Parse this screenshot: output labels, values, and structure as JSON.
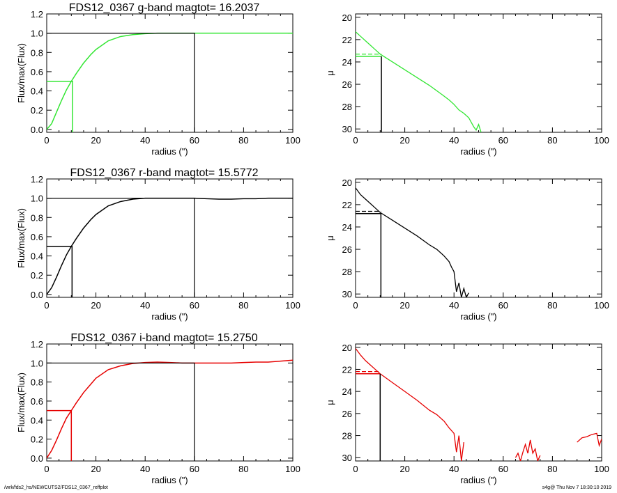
{
  "footer": {
    "path": "/wrk/fds2_hs/NEWCUTS2/FDS12_0367_reffplot",
    "stamp": "s4g@  Thu Nov  7 18:30:10 2019"
  },
  "chart_data": [
    {
      "type": "line",
      "panel": "g-band growth curve",
      "title": "FDS12_0367 g-band  magtot=      16.2037",
      "xlabel": "radius (\")",
      "ylabel": "Flux/max(Flux)",
      "xlim": [
        0,
        100
      ],
      "ylim": [
        -0.03,
        1.2
      ],
      "xticks": [
        "0",
        "20",
        "40",
        "60",
        "80",
        "100"
      ],
      "yticks": [
        "0.0",
        "0.2",
        "0.4",
        "0.6",
        "0.8",
        "1.0",
        "1.2"
      ],
      "color": "#33e633",
      "series": [
        {
          "x": [
            0,
            2,
            4,
            6,
            8,
            10,
            12,
            15,
            18,
            20,
            25,
            30,
            35,
            40,
            45,
            50,
            55,
            60,
            65,
            70,
            75,
            80,
            85,
            90,
            95,
            100
          ],
          "y": [
            0.0,
            0.06,
            0.18,
            0.3,
            0.41,
            0.5,
            0.58,
            0.69,
            0.78,
            0.83,
            0.92,
            0.965,
            0.985,
            0.995,
            1.0,
            1.0,
            1.0,
            1.0,
            1.0,
            1.0,
            1.0,
            1.0,
            1.0,
            1.0,
            1.0,
            1.0
          ]
        }
      ],
      "half_light": {
        "x": 10.5,
        "y": 0.5
      },
      "normalization": {
        "x": 60,
        "y": 1.0
      }
    },
    {
      "type": "line",
      "panel": "g-band surface brightness profile",
      "title": "",
      "xlabel": "radius (\")",
      "ylabel": "μ",
      "xlim": [
        0,
        100
      ],
      "ylim": [
        30.3,
        19.7
      ],
      "xticks": [
        "0",
        "20",
        "40",
        "60",
        "80",
        "100"
      ],
      "yticks": [
        "20",
        "22",
        "24",
        "26",
        "28",
        "30"
      ],
      "color": "#33e633",
      "series": [
        {
          "x": [
            0,
            2,
            4,
            6,
            8,
            10,
            15,
            20,
            25,
            30,
            35,
            38,
            40,
            42,
            44,
            46,
            47,
            48,
            49,
            50,
            51
          ],
          "y": [
            21.3,
            21.7,
            22.1,
            22.5,
            22.9,
            23.3,
            24.0,
            24.7,
            25.4,
            26.1,
            26.9,
            27.4,
            27.8,
            28.3,
            28.6,
            29.0,
            29.4,
            29.8,
            30.1,
            29.6,
            30.3
          ]
        }
      ],
      "reff": 10.5,
      "mu_e": 23.5,
      "mean_mu_e": 23.3
    },
    {
      "type": "line",
      "panel": "r-band growth curve",
      "title": "FDS12_0367 r-band  magtot=      15.5772",
      "xlabel": "radius (\")",
      "ylabel": "Flux/max(Flux)",
      "xlim": [
        0,
        100
      ],
      "ylim": [
        -0.03,
        1.2
      ],
      "xticks": [
        "0",
        "20",
        "40",
        "60",
        "80",
        "100"
      ],
      "yticks": [
        "0.0",
        "0.2",
        "0.4",
        "0.6",
        "0.8",
        "1.0",
        "1.2"
      ],
      "color": "#000000",
      "series": [
        {
          "x": [
            0,
            2,
            4,
            6,
            8,
            10,
            12,
            15,
            18,
            20,
            25,
            30,
            35,
            40,
            45,
            50,
            55,
            60,
            65,
            70,
            75,
            80,
            85,
            90,
            95,
            100
          ],
          "y": [
            0.0,
            0.07,
            0.18,
            0.3,
            0.41,
            0.5,
            0.58,
            0.69,
            0.78,
            0.83,
            0.92,
            0.965,
            0.99,
            1.0,
            1.0,
            1.0,
            1.0,
            1.0,
            0.995,
            0.99,
            0.99,
            0.995,
            0.995,
            1.0,
            1.0,
            1.0
          ]
        }
      ],
      "half_light": {
        "x": 10.3,
        "y": 0.5
      },
      "normalization": {
        "x": 60,
        "y": 1.0
      }
    },
    {
      "type": "line",
      "panel": "r-band surface brightness profile",
      "title": "",
      "xlabel": "radius (\")",
      "ylabel": "μ",
      "xlim": [
        0,
        100
      ],
      "ylim": [
        30.3,
        19.7
      ],
      "xticks": [
        "0",
        "20",
        "40",
        "60",
        "80",
        "100"
      ],
      "yticks": [
        "20",
        "22",
        "24",
        "26",
        "28",
        "30"
      ],
      "color": "#000000",
      "series": [
        {
          "x": [
            0,
            2,
            4,
            6,
            8,
            10,
            15,
            20,
            25,
            30,
            33,
            36,
            38,
            39,
            40,
            41,
            42,
            43,
            44,
            45,
            46
          ],
          "y": [
            20.5,
            21.1,
            21.5,
            21.9,
            22.3,
            22.7,
            23.4,
            24.1,
            24.8,
            25.6,
            26.0,
            26.6,
            27.1,
            27.6,
            28.0,
            29.8,
            29.0,
            30.3,
            29.5,
            30.3,
            29.9
          ]
        }
      ],
      "reff": 10.3,
      "mu_e": 22.8,
      "mean_mu_e": 22.6
    },
    {
      "type": "line",
      "panel": "i-band growth curve",
      "title": "FDS12_0367 i-band  magtot=      15.2750",
      "xlabel": "radius (\")",
      "ylabel": "Flux/max(Flux)",
      "xlim": [
        0,
        100
      ],
      "ylim": [
        -0.03,
        1.2
      ],
      "xticks": [
        "0",
        "20",
        "40",
        "60",
        "80",
        "100"
      ],
      "yticks": [
        "0.0",
        "0.2",
        "0.4",
        "0.6",
        "0.8",
        "1.0",
        "1.2"
      ],
      "color": "#e60000",
      "series": [
        {
          "x": [
            0,
            2,
            4,
            6,
            8,
            10,
            12,
            15,
            18,
            20,
            25,
            30,
            35,
            40,
            45,
            50,
            55,
            60,
            65,
            70,
            75,
            80,
            85,
            90,
            95,
            100
          ],
          "y": [
            0.0,
            0.08,
            0.19,
            0.31,
            0.42,
            0.5,
            0.58,
            0.69,
            0.78,
            0.84,
            0.93,
            0.97,
            0.995,
            1.005,
            1.01,
            1.005,
            1.0,
            1.0,
            1.0,
            1.0,
            1.0,
            1.005,
            1.01,
            1.01,
            1.02,
            1.03
          ]
        }
      ],
      "half_light": {
        "x": 10.0,
        "y": 0.5
      },
      "normalization": {
        "x": 60,
        "y": 1.0
      }
    },
    {
      "type": "line",
      "panel": "i-band surface brightness profile",
      "title": "",
      "xlabel": "radius (\")",
      "ylabel": "μ",
      "xlim": [
        0,
        100
      ],
      "ylim": [
        30.3,
        19.7
      ],
      "xticks": [
        "0",
        "20",
        "40",
        "60",
        "80",
        "100"
      ],
      "yticks": [
        "20",
        "22",
        "24",
        "26",
        "28",
        "30"
      ],
      "color": "#e60000",
      "series": [
        {
          "x": [
            0,
            2,
            4,
            6,
            8,
            10,
            15,
            20,
            25,
            30,
            33,
            36,
            38,
            40,
            41,
            42,
            43,
            44
          ],
          "y": [
            20.1,
            20.7,
            21.2,
            21.6,
            22.0,
            22.4,
            23.2,
            24.0,
            24.8,
            25.7,
            26.1,
            26.7,
            27.3,
            27.8,
            29.5,
            28.0,
            30.3,
            28.6
          ]
        },
        {
          "x": [
            65,
            66,
            67,
            68,
            69,
            70,
            71,
            72,
            73,
            74,
            75
          ],
          "y": [
            30.0,
            29.6,
            30.3,
            29.5,
            28.8,
            29.6,
            28.4,
            29.6,
            29.2,
            30.3,
            29.8
          ]
        },
        {
          "x": [
            90,
            92,
            94,
            96,
            98,
            99,
            100
          ],
          "y": [
            28.6,
            28.2,
            28.1,
            27.9,
            27.8,
            28.9,
            28.3
          ]
        }
      ],
      "reff": 10.0,
      "mu_e": 22.4,
      "mean_mu_e": 22.2
    }
  ]
}
